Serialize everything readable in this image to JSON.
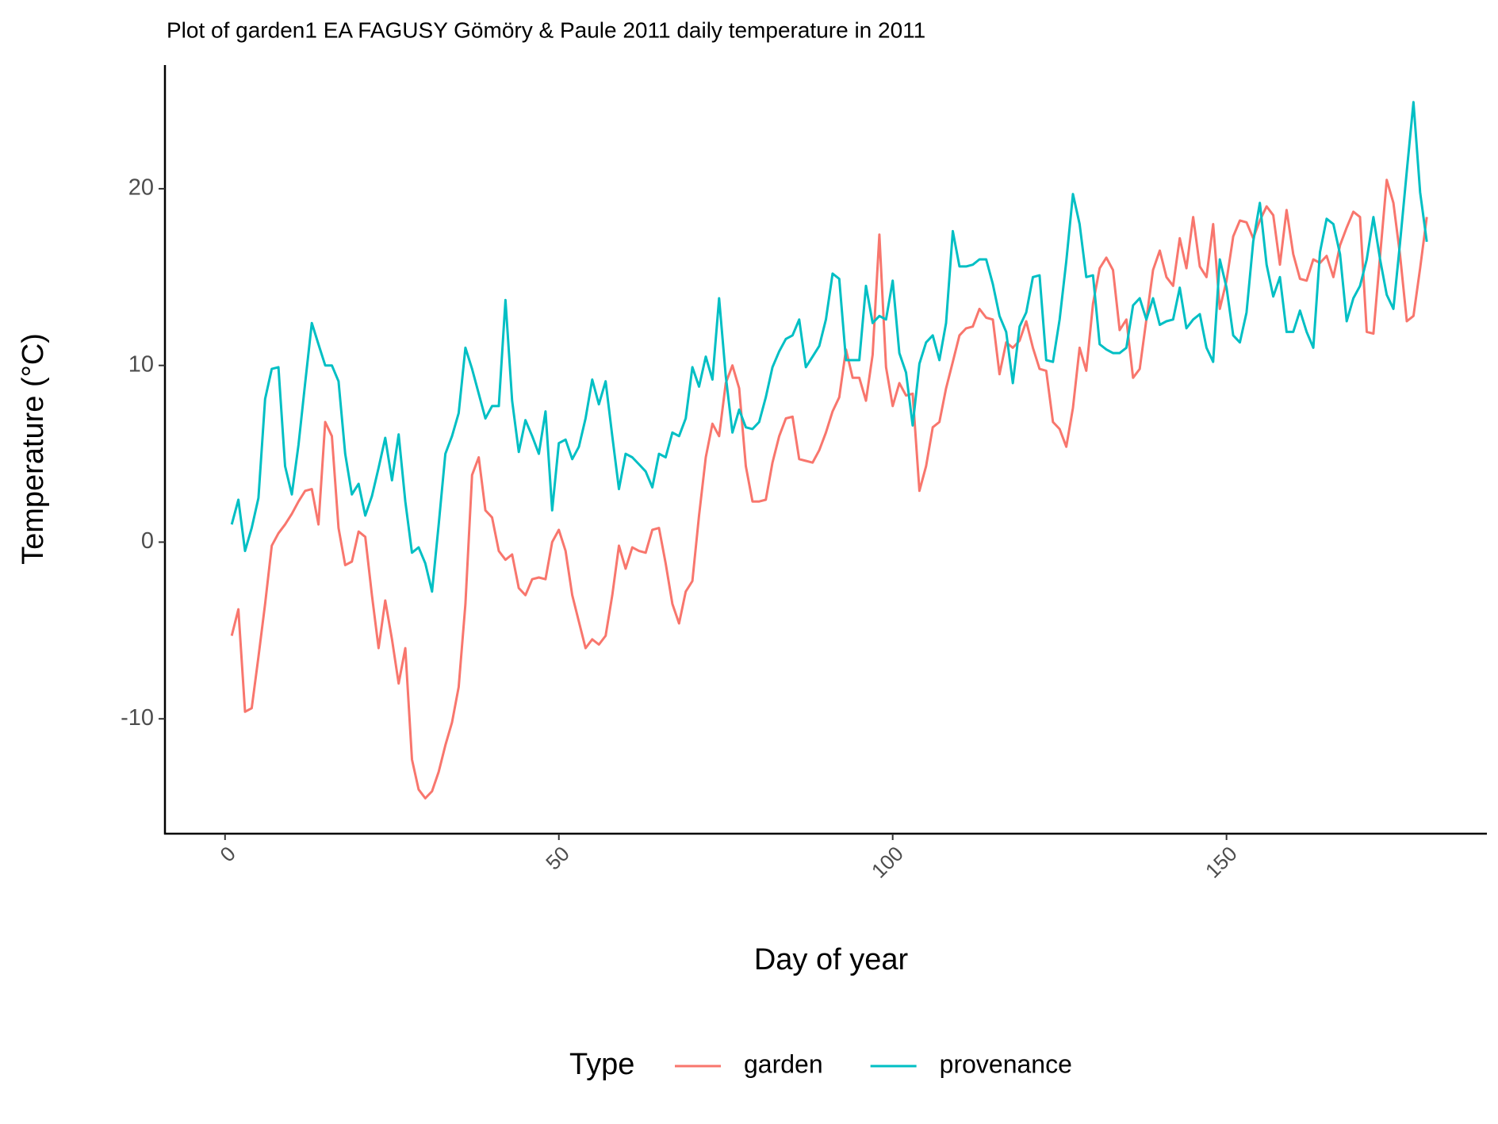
{
  "chart_data": {
    "type": "line",
    "title": "Plot of garden1 EA FAGUSY Gömöry & Paule 2011 daily temperature in 2011",
    "x_label": "Day of year",
    "y_label": "Temperature (°C)",
    "legend_title": "Type",
    "legend_position": "bottom",
    "x": [
      1,
      2,
      3,
      4,
      5,
      6,
      7,
      8,
      9,
      10,
      11,
      12,
      13,
      14,
      15,
      16,
      17,
      18,
      19,
      20,
      21,
      22,
      23,
      24,
      25,
      26,
      27,
      28,
      29,
      30,
      31,
      32,
      33,
      34,
      35,
      36,
      37,
      38,
      39,
      40,
      41,
      42,
      43,
      44,
      45,
      46,
      47,
      48,
      49,
      50,
      51,
      52,
      53,
      54,
      55,
      56,
      57,
      58,
      59,
      60,
      61,
      62,
      63,
      64,
      65,
      66,
      67,
      68,
      69,
      70,
      71,
      72,
      73,
      74,
      75,
      76,
      77,
      78,
      79,
      80,
      81,
      82,
      83,
      84,
      85,
      86,
      87,
      88,
      89,
      90,
      91,
      92,
      93,
      94,
      95,
      96,
      97,
      98,
      99,
      100,
      101,
      102,
      103,
      104,
      105,
      106,
      107,
      108,
      109,
      110,
      111,
      112,
      113,
      114,
      115,
      116,
      117,
      118,
      119,
      120,
      121,
      122,
      123,
      124,
      125,
      126,
      127,
      128,
      129,
      130,
      131,
      132,
      133,
      134,
      135,
      136,
      137,
      138,
      139,
      140,
      141,
      142,
      143,
      144,
      145,
      146,
      147,
      148,
      149,
      150,
      151,
      152,
      153,
      154,
      155,
      156,
      157,
      158,
      159,
      160,
      161,
      162,
      163,
      164,
      165,
      166,
      167,
      168,
      169,
      170,
      171,
      172,
      173,
      174,
      175,
      176,
      177,
      178,
      179,
      180
    ],
    "series": [
      {
        "name": "garden",
        "color": "#F8766D",
        "values": [
          -5.3,
          -3.8,
          -9.6,
          -9.4,
          -6.5,
          -3.5,
          -0.2,
          0.5,
          1.0,
          1.6,
          2.3,
          2.9,
          3.0,
          1.0,
          6.8,
          6.0,
          0.8,
          -1.3,
          -1.1,
          0.6,
          0.3,
          -3.0,
          -6.0,
          -3.3,
          -5.5,
          -8.0,
          -6.0,
          -12.3,
          -14.0,
          -14.5,
          -14.1,
          -13.0,
          -11.5,
          -10.2,
          -8.2,
          -3.5,
          3.8,
          4.8,
          1.8,
          1.4,
          -0.5,
          -1.0,
          -0.7,
          -2.6,
          -3.0,
          -2.1,
          -2.0,
          -2.1,
          0.0,
          0.7,
          -0.5,
          -3.0,
          -4.5,
          -6.0,
          -5.5,
          -5.8,
          -5.3,
          -3.0,
          -0.2,
          -1.5,
          -0.3,
          -0.5,
          -0.6,
          0.7,
          0.8,
          -1.2,
          -3.5,
          -4.6,
          -2.8,
          -2.2,
          1.5,
          4.8,
          6.7,
          6.0,
          9.0,
          10.0,
          8.7,
          4.3,
          2.3,
          2.3,
          2.4,
          4.5,
          6.0,
          7.0,
          7.1,
          4.7,
          4.6,
          4.5,
          5.2,
          6.2,
          7.4,
          8.2,
          10.9,
          9.3,
          9.3,
          8.0,
          10.6,
          17.4,
          9.9,
          7.7,
          9.0,
          8.3,
          8.4,
          2.9,
          4.3,
          6.5,
          6.8,
          8.7,
          10.2,
          11.7,
          12.1,
          12.2,
          13.2,
          12.7,
          12.6,
          9.5,
          11.3,
          11.0,
          11.4,
          12.5,
          11.0,
          9.8,
          9.7,
          6.8,
          6.4,
          5.4,
          7.6,
          11.0,
          9.7,
          13.5,
          15.5,
          16.1,
          15.4,
          12.0,
          12.6,
          9.3,
          9.8,
          12.6,
          15.4,
          16.5,
          15.0,
          14.5,
          17.2,
          15.5,
          18.4,
          15.6,
          15.0,
          18.0,
          13.2,
          14.8,
          17.3,
          18.2,
          18.1,
          17.2,
          18.2,
          19.0,
          18.5,
          15.7,
          18.8,
          16.3,
          14.9,
          14.8,
          16.0,
          15.8,
          16.2,
          15.0,
          16.8,
          17.8,
          18.7,
          18.4,
          11.9,
          11.8,
          16.2,
          20.5,
          19.2,
          16.2,
          12.5,
          12.8,
          15.5,
          18.4
        ]
      },
      {
        "name": "provenance",
        "color": "#00BFC4",
        "values": [
          1.0,
          2.4,
          -0.5,
          0.8,
          2.5,
          8.1,
          9.8,
          9.9,
          4.3,
          2.7,
          5.5,
          9.0,
          12.4,
          11.2,
          10.0,
          10.0,
          9.1,
          5.0,
          2.7,
          3.3,
          1.5,
          2.6,
          4.2,
          5.9,
          3.5,
          6.1,
          2.3,
          -0.6,
          -0.3,
          -1.2,
          -2.8,
          1.0,
          5.0,
          6.0,
          7.3,
          11.0,
          9.8,
          8.4,
          7.0,
          7.7,
          7.7,
          13.7,
          8.0,
          5.1,
          6.9,
          6.0,
          5.0,
          7.4,
          1.8,
          5.6,
          5.8,
          4.7,
          5.4,
          7.0,
          9.2,
          7.8,
          9.1,
          6.0,
          3.0,
          5.0,
          4.8,
          4.4,
          4.0,
          3.1,
          5.0,
          4.8,
          6.2,
          6.0,
          7.0,
          9.9,
          8.8,
          10.5,
          9.2,
          13.8,
          9.4,
          6.2,
          7.5,
          6.5,
          6.4,
          6.8,
          8.2,
          9.9,
          10.8,
          11.5,
          11.7,
          12.6,
          9.9,
          10.5,
          11.1,
          12.6,
          15.2,
          14.9,
          10.3,
          10.3,
          10.3,
          14.5,
          12.4,
          12.8,
          12.6,
          14.8,
          10.7,
          9.6,
          6.6,
          10.1,
          11.3,
          11.7,
          10.3,
          12.4,
          17.6,
          15.6,
          15.6,
          15.7,
          16.0,
          16.0,
          14.6,
          12.8,
          11.9,
          9.0,
          12.2,
          13.0,
          15.0,
          15.1,
          10.3,
          10.2,
          12.6,
          15.9,
          19.7,
          18.0,
          15.0,
          15.1,
          11.2,
          10.9,
          10.7,
          10.7,
          11.0,
          13.4,
          13.8,
          12.6,
          13.8,
          12.3,
          12.5,
          12.6,
          14.4,
          12.1,
          12.6,
          12.9,
          11.0,
          10.2,
          16.0,
          14.4,
          11.7,
          11.3,
          13.0,
          17.0,
          19.2,
          15.7,
          13.9,
          15.0,
          11.9,
          11.9,
          13.1,
          11.9,
          11.0,
          16.4,
          18.3,
          18.0,
          16.3,
          12.5,
          13.8,
          14.5,
          16.0,
          18.4,
          16.0,
          14.0,
          13.2,
          17.0,
          21.0,
          24.9,
          19.8,
          17.0
        ]
      }
    ],
    "xlim": [
      -9,
      189
    ],
    "ylim": [
      -16.5,
      27
    ],
    "xticks": [
      0,
      50,
      100,
      150
    ],
    "yticks": [
      -10,
      0,
      10,
      20
    ]
  }
}
